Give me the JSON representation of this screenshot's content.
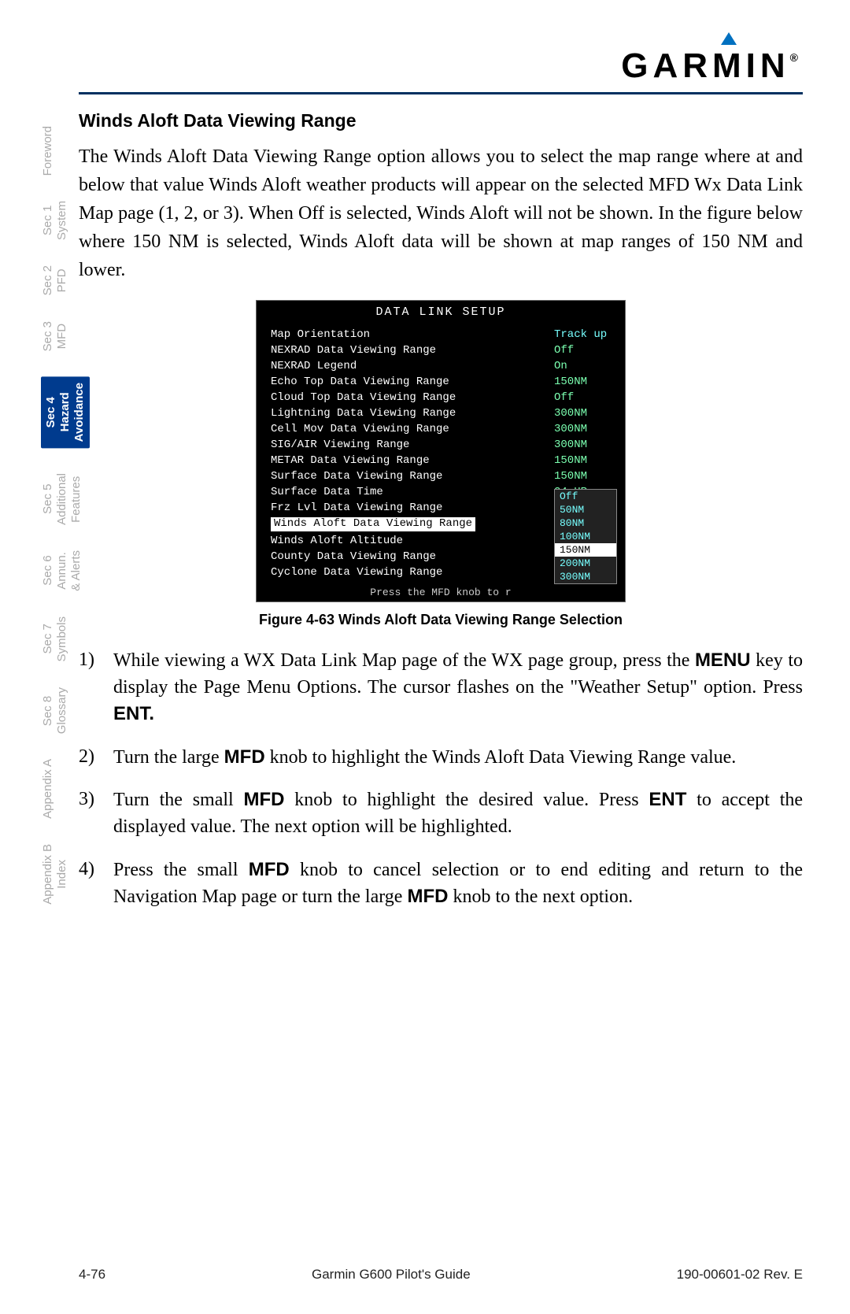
{
  "logo_text": "GARMIN",
  "sidebar": {
    "items": [
      {
        "label": "Foreword",
        "active": false
      },
      {
        "label": "Sec 1\nSystem",
        "active": false
      },
      {
        "label": "Sec 2\nPFD",
        "active": false
      },
      {
        "label": "Sec 3\nMFD",
        "active": false
      },
      {
        "label": "Sec 4\nHazard\nAvoidance",
        "active": true
      },
      {
        "label": "Sec 5\nAdditional\nFeatures",
        "active": false
      },
      {
        "label": "Sec 6\nAnnun.\n& Alerts",
        "active": false
      },
      {
        "label": "Sec 7\nSymbols",
        "active": false
      },
      {
        "label": "Sec 8\nGlossary",
        "active": false
      },
      {
        "label": "Appendix A",
        "active": false
      },
      {
        "label": "Appendix B\nIndex",
        "active": false
      }
    ]
  },
  "section_title": "Winds Aloft Data Viewing Range",
  "body_paragraph": "The Winds Aloft Data Viewing Range option allows you to select the map range where at and below that value Winds Aloft weather products will appear on the selected MFD Wx Data Link Map page (1, 2, or 3). When Off is selected, Winds Aloft will not be shown. In the figure below where 150 NM is selected, Winds Aloft data will be shown at map ranges of 150 NM and lower.",
  "screenshot": {
    "title": "DATA LINK SETUP",
    "bg_color": "#000000",
    "text_color": "#ffffff",
    "value_color": "#7bffb0",
    "highlight_color": "#77ffff",
    "rows": [
      {
        "label": "Map Orientation",
        "value": "Track up",
        "cyan": true
      },
      {
        "label": "NEXRAD Data Viewing Range",
        "value": "Off"
      },
      {
        "label": "NEXRAD Legend",
        "value": "On"
      },
      {
        "label": "Echo Top Data Viewing Range",
        "value": "150NM"
      },
      {
        "label": "Cloud Top Data Viewing Range",
        "value": "Off"
      },
      {
        "label": "Lightning Data Viewing Range",
        "value": "300NM"
      },
      {
        "label": "Cell Mov Data Viewing Range",
        "value": "300NM"
      },
      {
        "label": "SIG/AIR Viewing Range",
        "value": "300NM"
      },
      {
        "label": "METAR Data Viewing Range",
        "value": "150NM"
      },
      {
        "label": "Surface Data Viewing Range",
        "value": "150NM"
      },
      {
        "label": "Surface Data Time",
        "value": "24 HR"
      },
      {
        "label": "Frz Lvl Data Viewing Range",
        "value": "200NM"
      },
      {
        "label": "Winds Aloft Data Viewing Range",
        "value": "Off",
        "selected": true
      },
      {
        "label": "Winds Aloft Altitude",
        "value": ""
      },
      {
        "label": "County Data Viewing Range",
        "value": ""
      },
      {
        "label": "Cyclone Data Viewing Range",
        "value": ""
      }
    ],
    "dropdown": [
      "Off",
      "50NM",
      "80NM",
      "100NM",
      "150NM",
      "200NM",
      "300NM"
    ],
    "dropdown_selected": "150NM",
    "footer_text": "Press the MFD knob to r"
  },
  "figure_caption": "Figure 4-63  Winds Aloft Data Viewing Range Selection",
  "steps": [
    {
      "num": "1)",
      "text_parts": [
        {
          "t": "While viewing a WX Data Link Map page of the WX page group, press the "
        },
        {
          "t": "MENU",
          "bold": true
        },
        {
          "t": " key to display the Page Menu Options. The cursor flashes on the \"Weather Setup\" option. Press "
        },
        {
          "t": "ENT.",
          "bold": true
        }
      ]
    },
    {
      "num": "2)",
      "text_parts": [
        {
          "t": "Turn the large "
        },
        {
          "t": "MFD",
          "bold": true
        },
        {
          "t": " knob to highlight the Winds Aloft Data Viewing Range value."
        }
      ]
    },
    {
      "num": "3)",
      "text_parts": [
        {
          "t": "Turn the small "
        },
        {
          "t": "MFD",
          "bold": true
        },
        {
          "t": " knob to highlight the desired value. Press "
        },
        {
          "t": "ENT",
          "bold": true
        },
        {
          "t": " to accept the displayed value. The next option will be highlighted."
        }
      ]
    },
    {
      "num": "4)",
      "text_parts": [
        {
          "t": "Press the small "
        },
        {
          "t": "MFD",
          "bold": true
        },
        {
          "t": " knob to cancel selection or to end editing and return to the Navigation Map page or turn the large "
        },
        {
          "t": "MFD",
          "bold": true
        },
        {
          "t": " knob to the next option."
        }
      ]
    }
  ],
  "footer": {
    "page_num": "4-76",
    "doc_title": "Garmin G600 Pilot's Guide",
    "doc_rev": "190-00601-02  Rev. E"
  }
}
